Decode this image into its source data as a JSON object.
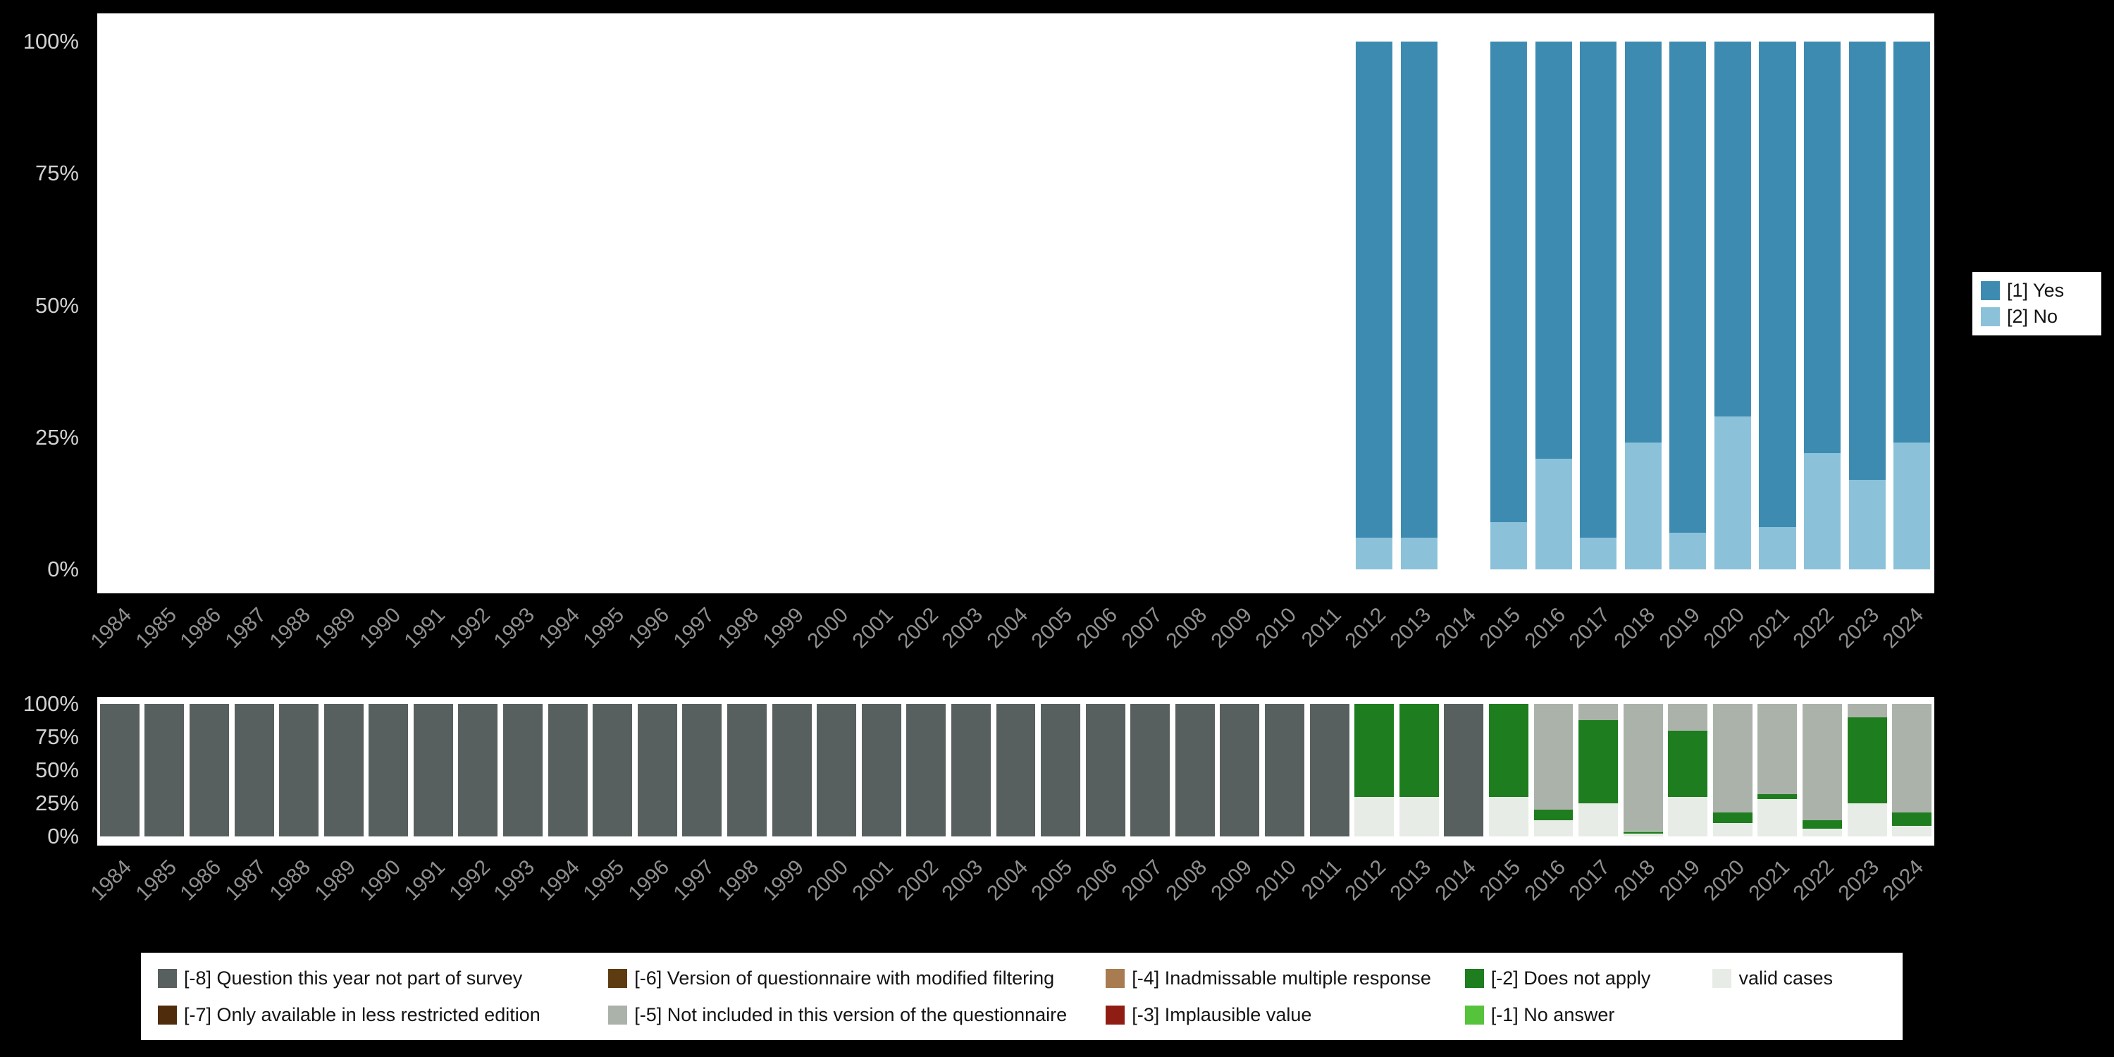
{
  "page": {
    "background": "#000000",
    "panel_background": "#ffffff"
  },
  "axes": {
    "y_ticks": [
      "0%",
      "25%",
      "50%",
      "75%",
      "100%"
    ],
    "years": [
      "1984",
      "1985",
      "1986",
      "1987",
      "1988",
      "1989",
      "1990",
      "1991",
      "1992",
      "1993",
      "1994",
      "1995",
      "1996",
      "1997",
      "1998",
      "1999",
      "2000",
      "2001",
      "2002",
      "2003",
      "2004",
      "2005",
      "2006",
      "2007",
      "2008",
      "2009",
      "2010",
      "2011",
      "2012",
      "2013",
      "2014",
      "2015",
      "2016",
      "2017",
      "2018",
      "2019",
      "2020",
      "2021",
      "2022",
      "2023",
      "2024"
    ]
  },
  "legend_top": {
    "items": [
      {
        "label": "[1] Yes",
        "color": "#3d8bb1"
      },
      {
        "label": "[2] No",
        "color": "#8cc2d9"
      }
    ]
  },
  "legend_bottom": {
    "items": [
      {
        "label": "[-8] Question this year not part of survey",
        "color": "#57605e"
      },
      {
        "label": "[-7] Only available in less restricted edition",
        "color": "#4f2d0c"
      },
      {
        "label": "[-6] Version of questionnaire with modified filtering",
        "color": "#5e3c11"
      },
      {
        "label": "[-5] Not included in this version of the questionnaire",
        "color": "#aab2aa"
      },
      {
        "label": "[-4] Inadmissable multiple response",
        "color": "#a87c50"
      },
      {
        "label": "[-3] Implausible value",
        "color": "#8f1d14"
      },
      {
        "label": "[-2] Does not apply",
        "color": "#1e7d1e"
      },
      {
        "label": "[-1] No answer",
        "color": "#56c33c"
      },
      {
        "label": "valid cases",
        "color": "#e8ece6"
      }
    ]
  },
  "chart_data": [
    {
      "type": "bar",
      "stacked": true,
      "unit": "percent",
      "title": "",
      "xlabel": "",
      "ylabel": "",
      "ylim": [
        0,
        100
      ],
      "legend_position": "right",
      "grid": false,
      "categories": [
        "1984",
        "1985",
        "1986",
        "1987",
        "1988",
        "1989",
        "1990",
        "1991",
        "1992",
        "1993",
        "1994",
        "1995",
        "1996",
        "1997",
        "1998",
        "1999",
        "2000",
        "2001",
        "2002",
        "2003",
        "2004",
        "2005",
        "2006",
        "2007",
        "2008",
        "2009",
        "2010",
        "2011",
        "2012",
        "2013",
        "2014",
        "2015",
        "2016",
        "2017",
        "2018",
        "2019",
        "2020",
        "2021",
        "2022",
        "2023",
        "2024"
      ],
      "series": [
        {
          "name": "[1] Yes",
          "color": "#3d8bb1",
          "values_by_year": {
            "2012": 94,
            "2013": 94,
            "2015": 91,
            "2016": 79,
            "2017": 94,
            "2018": 76,
            "2019": 93,
            "2020": 71,
            "2021": 92,
            "2022": 78,
            "2023": 83,
            "2024": 76
          }
        },
        {
          "name": "[2] No",
          "color": "#8cc2d9",
          "values_by_year": {
            "2012": 6,
            "2013": 6,
            "2015": 9,
            "2016": 21,
            "2017": 6,
            "2018": 24,
            "2019": 7,
            "2020": 29,
            "2021": 8,
            "2022": 22,
            "2023": 17,
            "2024": 24
          }
        }
      ],
      "stack_order_bottom_to_top": [
        "[2] No",
        "[1] Yes"
      ]
    },
    {
      "type": "bar",
      "stacked": true,
      "unit": "percent",
      "title": "",
      "xlabel": "",
      "ylabel": "",
      "ylim": [
        0,
        100
      ],
      "legend_position": "bottom",
      "grid": false,
      "categories": [
        "1984",
        "1985",
        "1986",
        "1987",
        "1988",
        "1989",
        "1990",
        "1991",
        "1992",
        "1993",
        "1994",
        "1995",
        "1996",
        "1997",
        "1998",
        "1999",
        "2000",
        "2001",
        "2002",
        "2003",
        "2004",
        "2005",
        "2006",
        "2007",
        "2008",
        "2009",
        "2010",
        "2011",
        "2012",
        "2013",
        "2014",
        "2015",
        "2016",
        "2017",
        "2018",
        "2019",
        "2020",
        "2021",
        "2022",
        "2023",
        "2024"
      ],
      "series": [
        {
          "name": "[-8] Question this year not part of survey",
          "color": "#57605e",
          "values_by_year": {
            "1984": 100,
            "1985": 100,
            "1986": 100,
            "1987": 100,
            "1988": 100,
            "1989": 100,
            "1990": 100,
            "1991": 100,
            "1992": 100,
            "1993": 100,
            "1994": 100,
            "1995": 100,
            "1996": 100,
            "1997": 100,
            "1998": 100,
            "1999": 100,
            "2000": 100,
            "2001": 100,
            "2002": 100,
            "2003": 100,
            "2004": 100,
            "2005": 100,
            "2006": 100,
            "2007": 100,
            "2008": 100,
            "2009": 100,
            "2010": 100,
            "2011": 100,
            "2014": 100
          }
        },
        {
          "name": "[-7] Only available in less restricted edition",
          "color": "#4f2d0c",
          "values_by_year": {}
        },
        {
          "name": "[-6] Version of questionnaire with modified filtering",
          "color": "#5e3c11",
          "values_by_year": {}
        },
        {
          "name": "[-5] Not included in this version of the questionnaire",
          "color": "#aab2aa",
          "values_by_year": {
            "2016": 80,
            "2017": 12,
            "2018": 96,
            "2019": 20,
            "2020": 82,
            "2021": 68,
            "2022": 88,
            "2023": 10,
            "2024": 82
          }
        },
        {
          "name": "[-4] Inadmissable multiple response",
          "color": "#a87c50",
          "values_by_year": {}
        },
        {
          "name": "[-3] Implausible value",
          "color": "#8f1d14",
          "values_by_year": {}
        },
        {
          "name": "[-2] Does not apply",
          "color": "#1e7d1e",
          "values_by_year": {
            "2012": 70,
            "2013": 70,
            "2015": 70,
            "2016": 8,
            "2017": 63,
            "2018": 2,
            "2019": 50,
            "2020": 8,
            "2021": 4,
            "2022": 6,
            "2023": 65,
            "2024": 10
          }
        },
        {
          "name": "[-1] No answer",
          "color": "#56c33c",
          "values_by_year": {}
        },
        {
          "name": "valid cases",
          "color": "#e8ece6",
          "values_by_year": {
            "2012": 30,
            "2013": 30,
            "2015": 30,
            "2016": 12,
            "2017": 25,
            "2018": 2,
            "2019": 30,
            "2020": 10,
            "2021": 28,
            "2022": 6,
            "2023": 25,
            "2024": 8
          }
        }
      ],
      "stack_order_bottom_to_top": [
        "valid cases",
        "[-1] No answer",
        "[-2] Does not apply",
        "[-3] Implausible value",
        "[-4] Inadmissable multiple response",
        "[-5] Not included in this version of the questionnaire",
        "[-6] Version of questionnaire with modified filtering",
        "[-7] Only available in less restricted edition",
        "[-8] Question this year not part of survey"
      ]
    }
  ]
}
